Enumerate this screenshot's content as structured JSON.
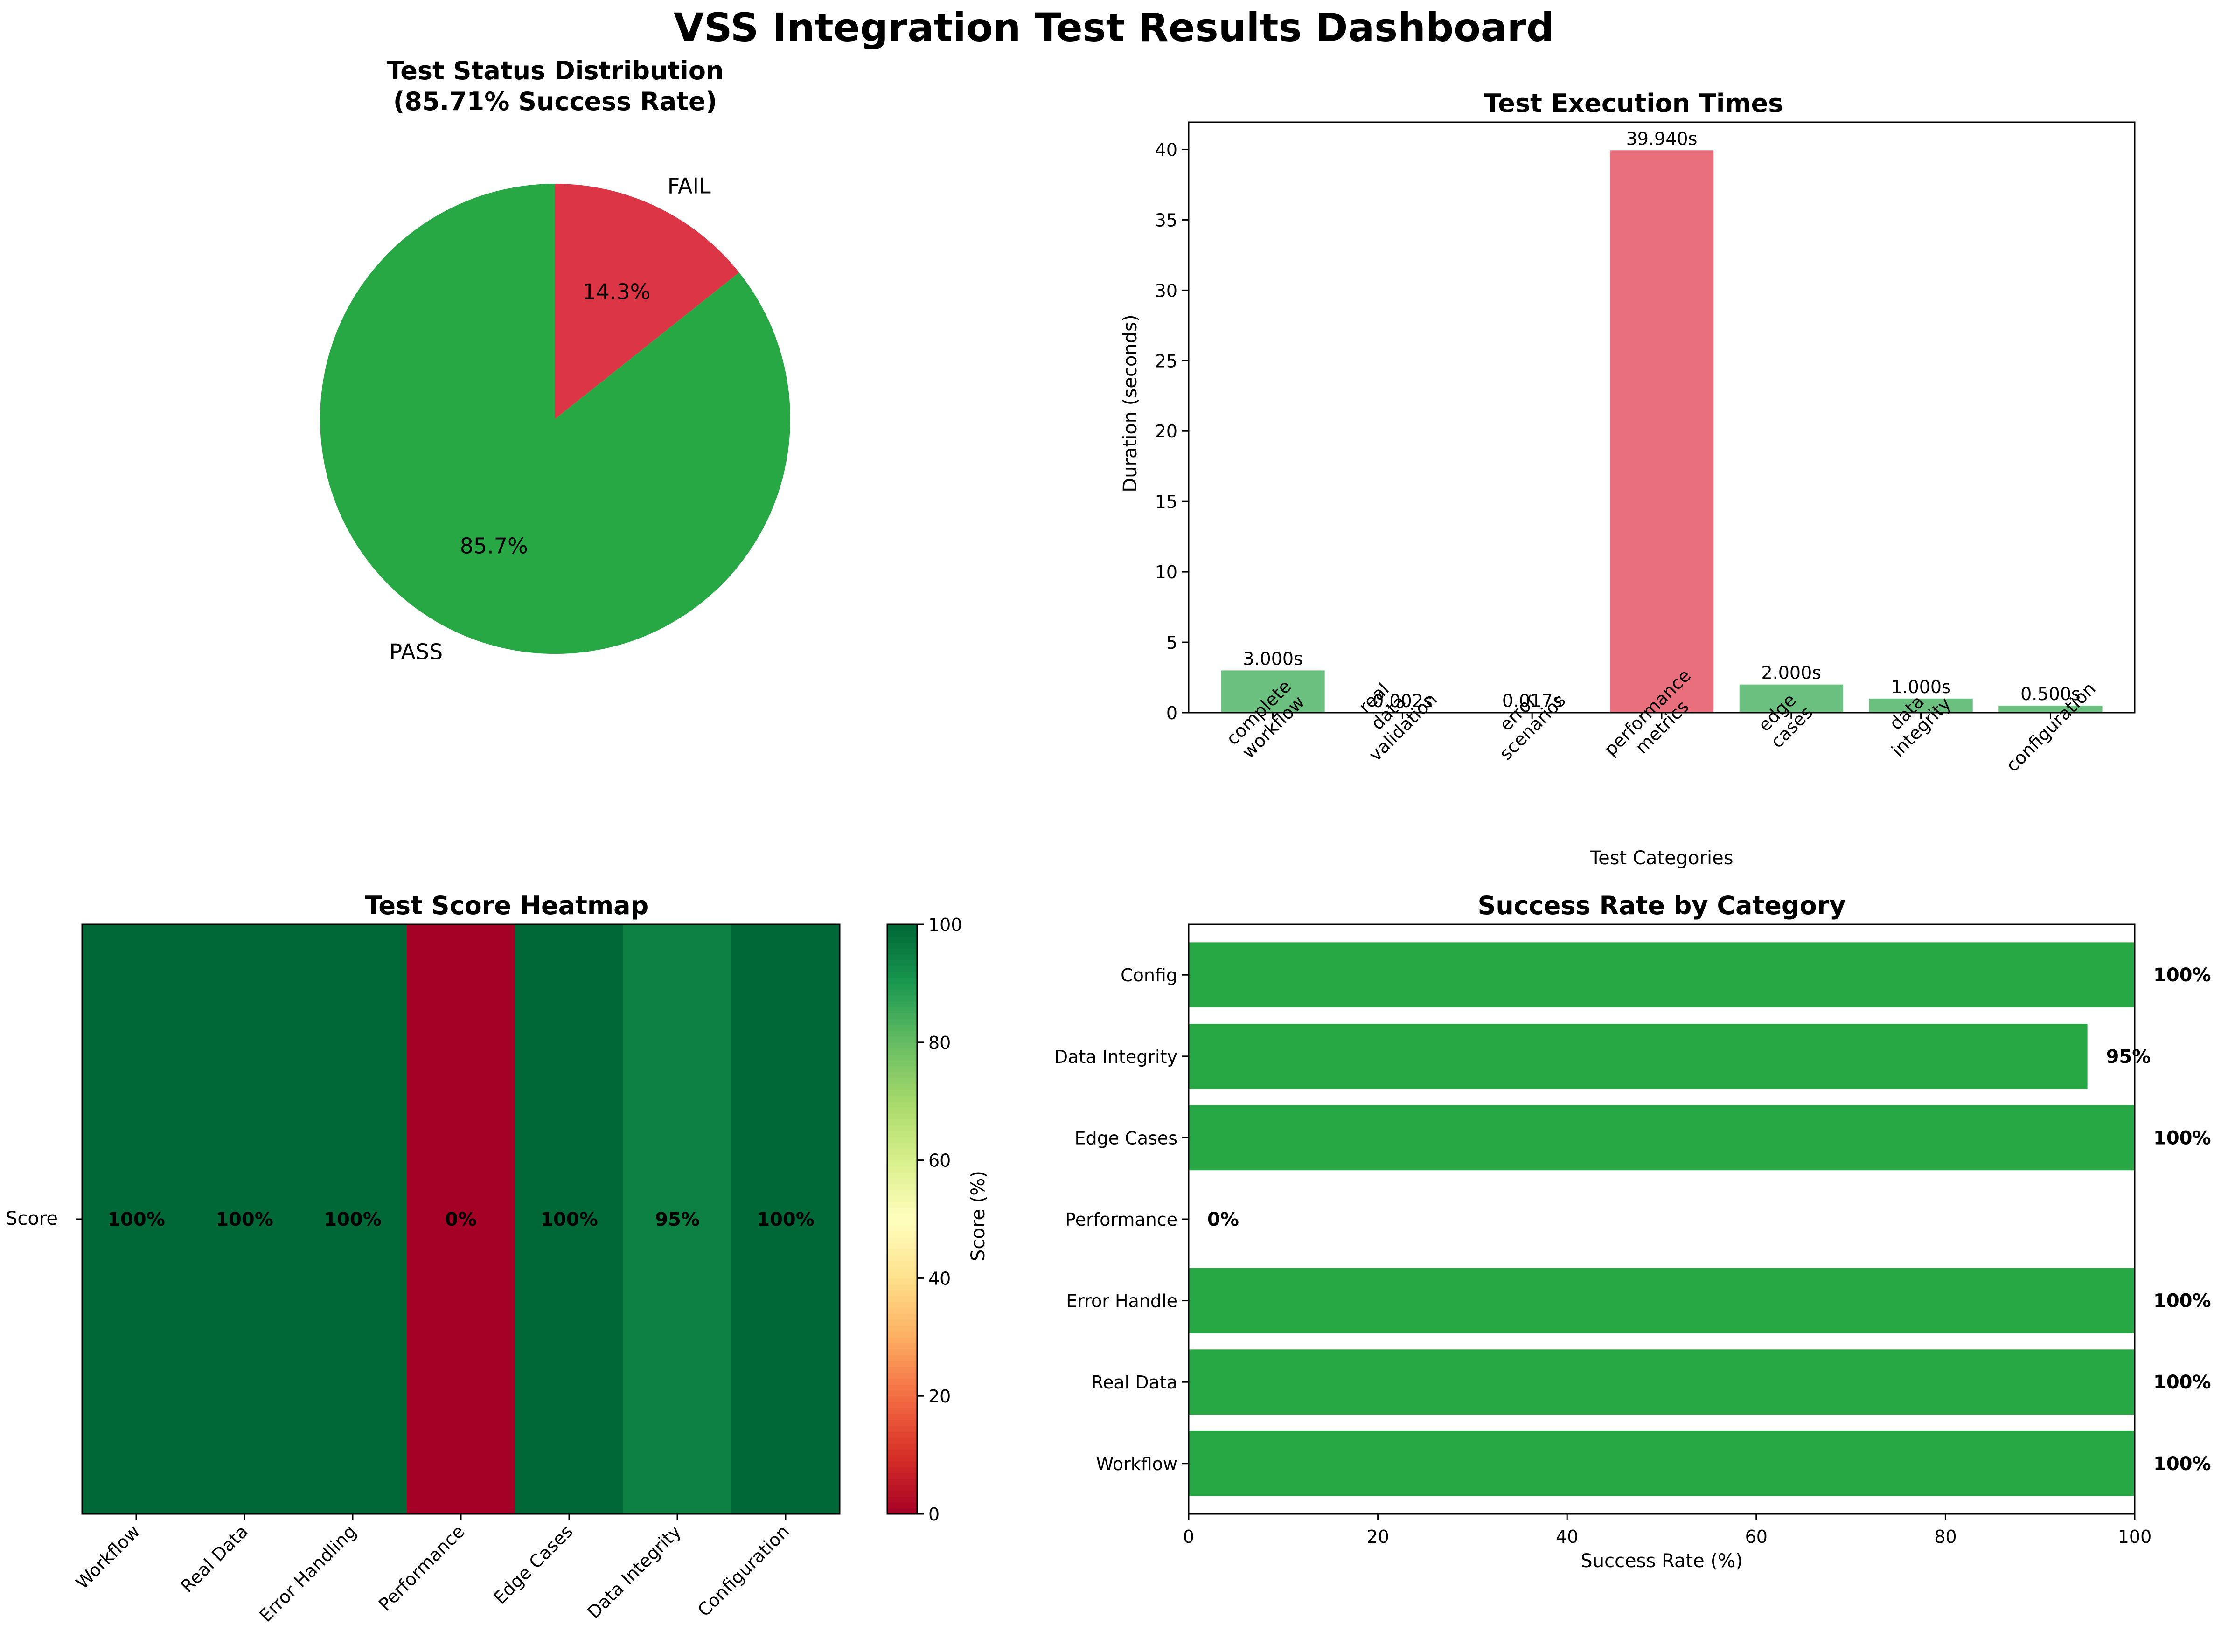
{
  "suptitle": "VSS Integration Test Results Dashboard",
  "colors": {
    "pass": "#28a745",
    "fail": "#dc3545",
    "bar_pass": "#6cc07f",
    "bar_fail": "#e86f7b"
  },
  "chart_data": [
    {
      "type": "pie",
      "title_line1": "Test Status Distribution",
      "title_line2": "(85.71% Success Rate)",
      "labels": [
        "PASS",
        "FAIL"
      ],
      "values": [
        85.7,
        14.3
      ],
      "pct_labels": [
        "85.7%",
        "14.3%"
      ],
      "colors": [
        "#28a745",
        "#dc3545"
      ]
    },
    {
      "type": "bar",
      "title": "Test Execution Times",
      "xlabel": "Test Categories",
      "ylabel": "Duration (seconds)",
      "categories": [
        [
          "complete",
          "workflow"
        ],
        [
          "real",
          "data",
          "validation"
        ],
        [
          "error",
          "scenarios"
        ],
        [
          "performance",
          "metrics"
        ],
        [
          "edge",
          "cases"
        ],
        [
          "data",
          "integrity"
        ],
        [
          "configuration"
        ]
      ],
      "values": [
        3.0,
        0.002,
        0.017,
        39.94,
        2.0,
        1.0,
        0.5
      ],
      "value_labels": [
        "3.000s",
        "0.002s",
        "0.017s",
        "39.940s",
        "2.000s",
        "1.000s",
        "0.500s"
      ],
      "status": [
        "pass",
        "pass",
        "pass",
        "fail",
        "pass",
        "pass",
        "pass"
      ],
      "yticks": [
        0,
        5,
        10,
        15,
        20,
        25,
        30,
        35,
        40
      ],
      "ylim": [
        0,
        41.937
      ]
    },
    {
      "type": "heatmap",
      "title": "Test Score Heatmap",
      "row_label": "Score",
      "columns": [
        "Workflow",
        "Real Data",
        "Error Handling",
        "Performance",
        "Edge Cases",
        "Data Integrity",
        "Configuration"
      ],
      "values": [
        100,
        100,
        100,
        0,
        100,
        95,
        100
      ],
      "cell_labels": [
        "100%",
        "100%",
        "100%",
        "0%",
        "100%",
        "95%",
        "100%"
      ],
      "colorbar_label": "Score (%)",
      "colorbar_ticks": [
        0,
        20,
        40,
        60,
        80,
        100
      ],
      "colormap": "RdYlGn",
      "vmin": 0,
      "vmax": 100
    },
    {
      "type": "bar",
      "orientation": "horizontal",
      "title": "Success Rate by Category",
      "xlabel": "Success Rate (%)",
      "categories": [
        "Workflow",
        "Real Data",
        "Error Handle",
        "Performance",
        "Edge Cases",
        "Data Integrity",
        "Config"
      ],
      "values": [
        100,
        100,
        100,
        0,
        100,
        95,
        100
      ],
      "value_labels": [
        "100%",
        "100%",
        "100%",
        "0%",
        "100%",
        "95%",
        "100%"
      ],
      "xticks": [
        0,
        20,
        40,
        60,
        80,
        100
      ],
      "xlim": [
        0,
        100
      ],
      "color": "#28a745"
    }
  ]
}
